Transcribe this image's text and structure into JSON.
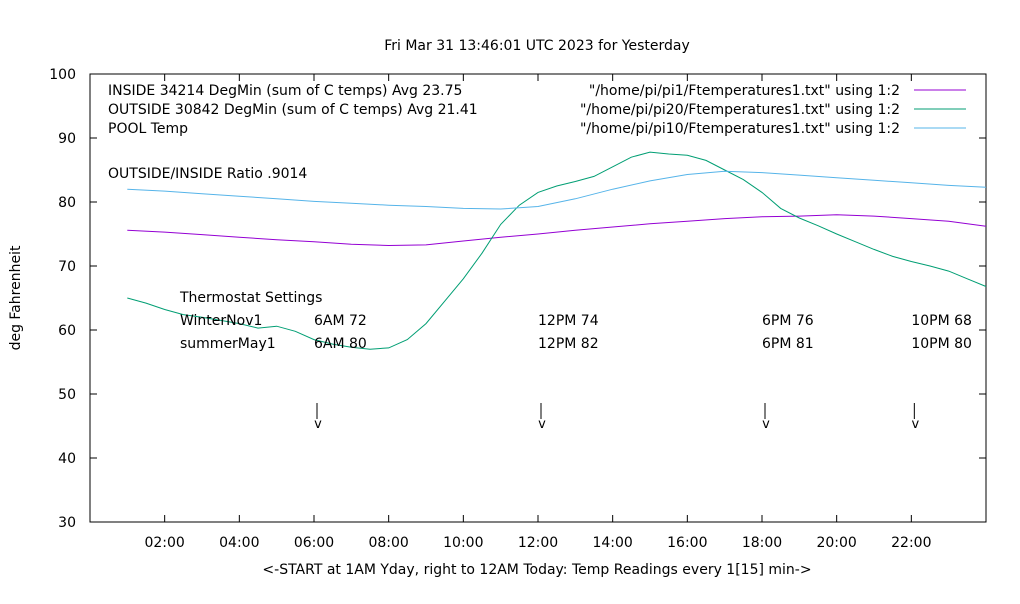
{
  "chart_data": {
    "type": "line",
    "title": "Fri Mar 31 13:46:01 UTC 2023 for Yesterday",
    "xlabel": "<-START at 1AM Yday, right to 12AM Today:  Temp Readings every 1[15] min->",
    "ylabel": "deg Fahrenheit",
    "xlim": [
      0,
      24
    ],
    "ylim": [
      30,
      100
    ],
    "yticks": [
      "30",
      "40",
      "50",
      "60",
      "70",
      "80",
      "90",
      "100"
    ],
    "xtick_hours": [
      2,
      4,
      6,
      8,
      10,
      12,
      14,
      16,
      18,
      20,
      22
    ],
    "xticks": [
      "02:00",
      "04:00",
      "06:00",
      "08:00",
      "10:00",
      "12:00",
      "14:00",
      "16:00",
      "18:00",
      "20:00",
      "22:00"
    ],
    "grid": false,
    "legend_position": "top",
    "series": [
      {
        "name": "INSIDE 34214 DegMin (sum of C temps) Avg 23.75",
        "file": "\"/home/pi/pi1/Ftemperatures1.txt\" using 1:2",
        "color": "#9400d3",
        "x": [
          1,
          2,
          3,
          4,
          5,
          6,
          7,
          8,
          9,
          10,
          11,
          12,
          13,
          14,
          15,
          16,
          17,
          18,
          19,
          20,
          21,
          22,
          23,
          24
        ],
        "y": [
          75.6,
          75.3,
          74.9,
          74.5,
          74.1,
          73.8,
          73.4,
          73.2,
          73.3,
          73.9,
          74.5,
          75.0,
          75.6,
          76.1,
          76.6,
          77.0,
          77.4,
          77.7,
          77.8,
          78.0,
          77.8,
          77.4,
          77.0,
          76.2
        ]
      },
      {
        "name": "OUTSIDE 30842 DegMin (sum of C temps) Avg 21.41",
        "file": "\"/home/pi/pi20/Ftemperatures1.txt\" using 1:2",
        "color": "#009e73",
        "x": [
          1,
          1.5,
          2,
          2.5,
          3,
          3.5,
          4,
          4.5,
          5,
          5.5,
          6,
          6.5,
          7,
          7.5,
          8,
          8.5,
          9,
          9.5,
          10,
          10.5,
          11,
          11.5,
          12,
          12.5,
          13,
          13.5,
          14,
          14.5,
          15,
          15.5,
          16,
          16.5,
          17,
          17.5,
          18,
          18.5,
          19,
          19.5,
          20,
          20.5,
          21,
          21.5,
          22,
          22.5,
          23,
          23.5,
          24
        ],
        "y": [
          65.0,
          64.2,
          63.2,
          62.4,
          62.0,
          61.5,
          61.0,
          60.3,
          60.6,
          59.8,
          58.5,
          57.8,
          57.3,
          57.0,
          57.2,
          58.5,
          61.0,
          64.5,
          68.0,
          72.0,
          76.5,
          79.5,
          81.5,
          82.5,
          83.2,
          84.0,
          85.5,
          87.0,
          87.8,
          87.5,
          87.3,
          86.5,
          85.0,
          83.5,
          81.5,
          79.0,
          77.5,
          76.3,
          75.0,
          73.8,
          72.6,
          71.5,
          70.7,
          70.0,
          69.2,
          68.0,
          66.8
        ]
      },
      {
        "name": "POOL Temp",
        "file": "\"/home/pi/pi10/Ftemperatures1.txt\" using 1:2",
        "color": "#56b4e9",
        "x": [
          1,
          2,
          3,
          4,
          5,
          6,
          7,
          8,
          9,
          10,
          11,
          12,
          13,
          14,
          15,
          16,
          17,
          18,
          19,
          20,
          21,
          22,
          23,
          24
        ],
        "y": [
          82.0,
          81.7,
          81.3,
          80.9,
          80.5,
          80.1,
          79.8,
          79.5,
          79.3,
          79.0,
          78.9,
          79.3,
          80.5,
          82.0,
          83.3,
          84.3,
          84.8,
          84.6,
          84.2,
          83.8,
          83.4,
          83.0,
          82.6,
          82.3
        ]
      }
    ],
    "annotations": {
      "ratio": "OUTSIDE/INSIDE Ratio .9014",
      "thermostat_title": "Thermostat Settings",
      "rows": [
        {
          "label": "WinterNov1",
          "values": [
            "6AM 72",
            "12PM 74",
            "6PM 76",
            "10PM 68"
          ]
        },
        {
          "label": "summerMay1",
          "values": [
            "6AM 80",
            "12PM 82",
            "6PM 81",
            "10PM 80"
          ]
        }
      ],
      "arrow_hours": [
        6,
        12,
        18,
        22
      ],
      "arrow_glyph": "v"
    }
  }
}
